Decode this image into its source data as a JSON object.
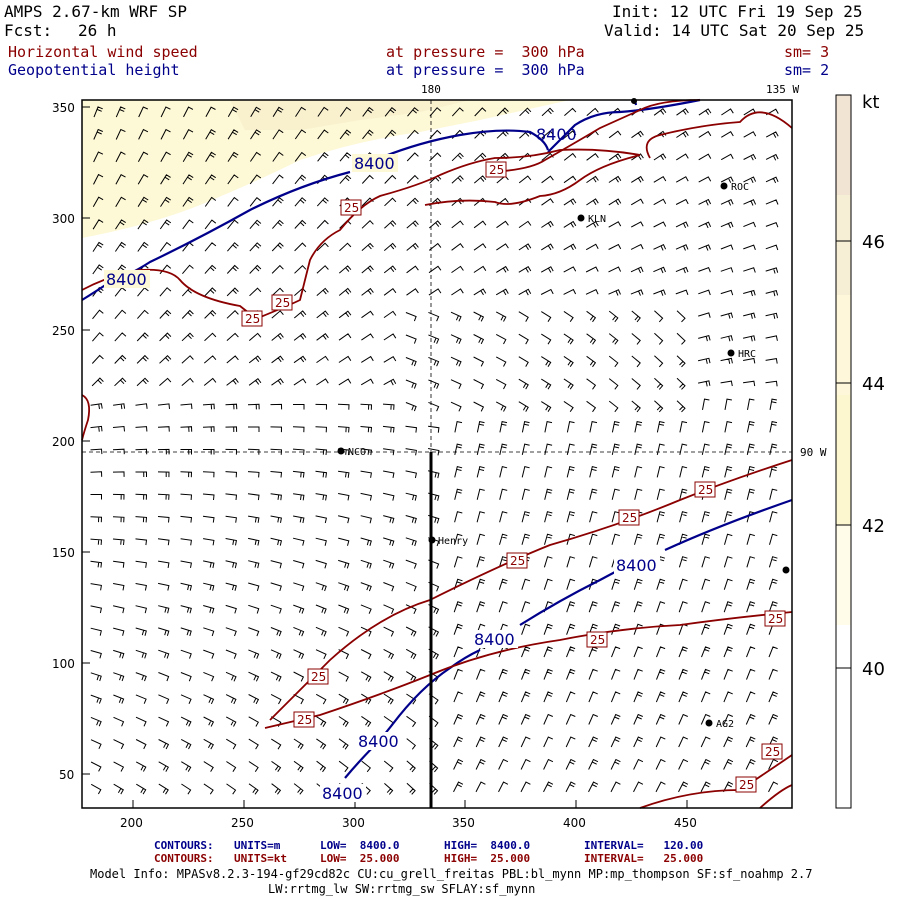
{
  "header": {
    "model": "AMPS 2.67-km WRF SP",
    "fcst_label": "Fcst:",
    "fcst_value": "26 h",
    "init": "Init: 12 UTC Fri 19 Sep 25",
    "valid": "Valid: 14 UTC Sat 20 Sep 25",
    "field1": "Horizontal wind speed",
    "field1_level": "at pressure =  300 hPa",
    "field1_sm": "sm= 3",
    "field2": "Geopotential height",
    "field2_level": "at pressure =  300 hPa",
    "field2_sm": "sm= 2"
  },
  "map": {
    "x_ticks": [
      "200",
      "250",
      "300",
      "350",
      "400",
      "450"
    ],
    "y_ticks": [
      "350",
      "300",
      "250",
      "200",
      "150",
      "100",
      "50"
    ],
    "lon_labels": {
      "top_center": "180",
      "top_right": "135 W",
      "right": "90 W"
    },
    "stations": [
      {
        "name": "ROC"
      },
      {
        "name": "KLN"
      },
      {
        "name": "HRC"
      },
      {
        "name": "NCO"
      },
      {
        "name": "Henry"
      },
      {
        "name": "AG2"
      }
    ],
    "height_contour_labels": [
      "8400",
      "8400",
      "8400",
      "8400",
      "8400",
      "8400",
      "8400"
    ],
    "speed_contour_labels": [
      "25",
      "25",
      "25",
      "25",
      "25",
      "25",
      "25",
      "25",
      "25",
      "25",
      "25",
      "25",
      "25"
    ],
    "colors": {
      "height": "#00008b",
      "speed": "#8b0000",
      "shade1": "#fdf8d5",
      "shade2": "#f5e8c4"
    }
  },
  "colorbar": {
    "unit": "kt",
    "levels": [
      "46",
      "44",
      "42",
      "40"
    ],
    "colors": [
      "#f1e4d3",
      "#f5eed0",
      "#fbf6d2",
      "#fffde8",
      "#ffffff"
    ]
  },
  "footer": {
    "line1_label": "CONTOURS:",
    "line1_units": "UNITS=m",
    "line1_low": "LOW=  8400.0",
    "line1_high": "HIGH=  8400.0",
    "line1_int": "INTERVAL=   120.00",
    "line2_label": "CONTOURS:",
    "line2_units": "UNITS=kt",
    "line2_low": "LOW=  25.000",
    "line2_high": "HIGH=  25.000",
    "line2_int": "INTERVAL=   25.000",
    "model_info": "Model Info: MPASv8.2.3-194-gf29cd82c CU:cu_grell_freitas PBL:bl_mynn MP:mp_thompson SF:sf_noahmp 2.7",
    "model_info2": "LW:rrtmg_lw SW:rrtmg_sw SFLAY:sf_mynn"
  }
}
